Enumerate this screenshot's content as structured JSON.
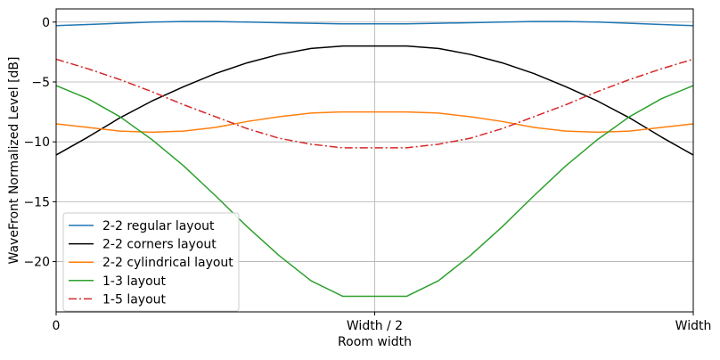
{
  "chart_data": {
    "type": "line",
    "xlabel": "Room width",
    "ylabel": "WaveFront Normalized Level [dB]",
    "xlim": [
      0,
      1
    ],
    "ylim": [
      -24.2,
      1.1
    ],
    "x_ticks": [
      {
        "value": 0,
        "label": "0"
      },
      {
        "value": 0.5,
        "label": "Width / 2"
      },
      {
        "value": 1,
        "label": "Width"
      }
    ],
    "y_ticks": [
      {
        "value": 0,
        "label": "0"
      },
      {
        "value": -5,
        "label": "−5"
      },
      {
        "value": -10,
        "label": "−10"
      },
      {
        "value": -15,
        "label": "−15"
      },
      {
        "value": -20,
        "label": "−20"
      }
    ],
    "grid": true,
    "legend_position": "lower-left",
    "x": [
      0,
      0.05,
      0.1,
      0.15,
      0.2,
      0.25,
      0.3,
      0.35,
      0.4,
      0.45,
      0.5,
      0.55,
      0.6,
      0.65,
      0.7,
      0.75,
      0.8,
      0.85,
      0.9,
      0.95,
      1
    ],
    "series": [
      {
        "name": "2-2 regular layout",
        "color": "#1f77b4",
        "dash": "solid",
        "values": [
          -0.3,
          -0.2,
          -0.1,
          0.0,
          0.05,
          0.05,
          0.0,
          -0.05,
          -0.1,
          -0.15,
          -0.15,
          -0.15,
          -0.1,
          -0.05,
          0.0,
          0.05,
          0.05,
          0.0,
          -0.1,
          -0.2,
          -0.3
        ]
      },
      {
        "name": "2-2 corners layout",
        "color": "#000000",
        "dash": "solid",
        "values": [
          -11.1,
          -9.6,
          -8.0,
          -6.6,
          -5.4,
          -4.3,
          -3.4,
          -2.7,
          -2.2,
          -2.0,
          -2.0,
          -2.0,
          -2.2,
          -2.7,
          -3.4,
          -4.3,
          -5.4,
          -6.6,
          -8.0,
          -9.6,
          -11.1
        ]
      },
      {
        "name": "2-2 cylindrical layout",
        "color": "#ff7f0e",
        "dash": "solid",
        "values": [
          -8.5,
          -8.8,
          -9.1,
          -9.2,
          -9.1,
          -8.8,
          -8.3,
          -7.9,
          -7.6,
          -7.5,
          -7.5,
          -7.5,
          -7.6,
          -7.9,
          -8.3,
          -8.8,
          -9.1,
          -9.2,
          -9.1,
          -8.8,
          -8.5
        ]
      },
      {
        "name": "1-3 layout",
        "color": "#2ca02c",
        "dash": "solid",
        "values": [
          -5.3,
          -6.4,
          -7.9,
          -9.8,
          -12.0,
          -14.5,
          -17.1,
          -19.5,
          -21.6,
          -22.9,
          -22.9,
          -22.9,
          -21.6,
          -19.5,
          -17.1,
          -14.5,
          -12.0,
          -9.8,
          -7.9,
          -6.4,
          -5.3
        ]
      },
      {
        "name": "1-5 layout",
        "color": "#d62728",
        "dash": "dashdot",
        "values": [
          -3.1,
          -3.9,
          -4.8,
          -5.8,
          -6.9,
          -7.9,
          -8.9,
          -9.7,
          -10.2,
          -10.5,
          -10.5,
          -10.5,
          -10.2,
          -9.7,
          -8.9,
          -7.9,
          -6.9,
          -5.8,
          -4.8,
          -3.9,
          -3.1
        ]
      }
    ]
  }
}
